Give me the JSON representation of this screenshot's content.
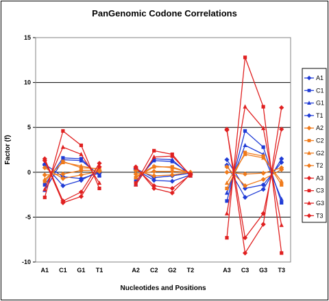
{
  "chart_data": {
    "type": "line",
    "title": "PanGenomic Codone Correlations",
    "xlabel": "Nucleotides and Positions",
    "ylabel": "Factor (f)",
    "ylim": [
      -10,
      15
    ],
    "y_ticks": [
      -10,
      -5,
      0,
      5,
      10,
      15
    ],
    "grid": "horizontal",
    "legend_placement": "right",
    "categories": [
      "A1",
      "C1",
      "G1",
      "T1",
      "",
      "A2",
      "C2",
      "G2",
      "T2",
      "",
      "A3",
      "C3",
      "G3",
      "T3"
    ],
    "series": [
      {
        "name": "A1",
        "color": "#1f3bd6",
        "marker": "diamond",
        "values": [
          0.8,
          -1.5,
          -0.9,
          0.2,
          null,
          0.3,
          -0.9,
          -1.0,
          -0.3,
          null,
          0.8,
          -2.8,
          -1.9,
          1.5
        ]
      },
      {
        "name": "C1",
        "color": "#1f3bd6",
        "marker": "square",
        "values": [
          -1.4,
          1.6,
          1.5,
          -0.4,
          null,
          -1.0,
          1.3,
          1.2,
          -0.2,
          null,
          -3.2,
          4.6,
          2.8,
          -3.4
        ]
      },
      {
        "name": "G1",
        "color": "#1f3bd6",
        "marker": "triangle",
        "values": [
          -2.0,
          1.4,
          1.3,
          -0.3,
          null,
          -1.3,
          1.5,
          1.4,
          -0.4,
          null,
          -2.3,
          3.0,
          2.0,
          -3.0
        ]
      },
      {
        "name": "T1",
        "color": "#1f3bd6",
        "marker": "diamond",
        "values": [
          0.9,
          -0.5,
          -0.7,
          -0.1,
          null,
          0.4,
          -0.6,
          -0.4,
          -0.1,
          null,
          1.4,
          -1.8,
          -1.4,
          1.1
        ]
      },
      {
        "name": "A2",
        "color": "#f07a1a",
        "marker": "diamond",
        "values": [
          -0.3,
          -0.2,
          0.2,
          0.2,
          null,
          -0.2,
          0.1,
          0.1,
          0.0,
          null,
          0.0,
          -0.2,
          -0.1,
          0.5
        ]
      },
      {
        "name": "C2",
        "color": "#f07a1a",
        "marker": "square",
        "values": [
          -1.0,
          1.2,
          0.5,
          0.4,
          null,
          -0.6,
          0.6,
          0.6,
          -0.1,
          null,
          -1.8,
          2.2,
          1.8,
          -1.4
        ]
      },
      {
        "name": "G2",
        "color": "#f07a1a",
        "marker": "triangle",
        "values": [
          -0.8,
          1.1,
          0.7,
          0.3,
          null,
          -0.5,
          0.7,
          0.5,
          -0.1,
          null,
          -1.2,
          2.0,
          1.6,
          -1.0
        ]
      },
      {
        "name": "T2",
        "color": "#f07a1a",
        "marker": "diamond",
        "values": [
          0.5,
          -0.7,
          -0.3,
          0.1,
          null,
          0.2,
          -0.4,
          -0.3,
          0.0,
          null,
          0.6,
          -1.5,
          -0.8,
          0.3
        ]
      },
      {
        "name": "A3",
        "color": "#e02020",
        "marker": "diamond",
        "values": [
          1.5,
          -3.2,
          -2.2,
          1.0,
          null,
          0.5,
          -1.5,
          -1.8,
          -0.3,
          null,
          4.7,
          -7.3,
          -4.6,
          4.8
        ]
      },
      {
        "name": "C3",
        "color": "#e02020",
        "marker": "square",
        "values": [
          -2.8,
          4.6,
          3.0,
          -1.8,
          null,
          -1.2,
          2.4,
          2.0,
          -0.4,
          null,
          -7.3,
          12.8,
          7.3,
          -9.0
        ]
      },
      {
        "name": "G3",
        "color": "#e02020",
        "marker": "triangle",
        "values": [
          -1.9,
          2.8,
          2.0,
          -1.2,
          null,
          -1.4,
          1.7,
          1.8,
          -0.3,
          null,
          -4.6,
          7.3,
          4.9,
          -5.9
        ]
      },
      {
        "name": "T3",
        "color": "#e02020",
        "marker": "diamond",
        "values": [
          1.3,
          -3.4,
          -2.7,
          0.6,
          null,
          0.6,
          -1.8,
          -2.3,
          -0.2,
          null,
          4.8,
          -9.0,
          -5.8,
          7.2
        ]
      }
    ]
  }
}
